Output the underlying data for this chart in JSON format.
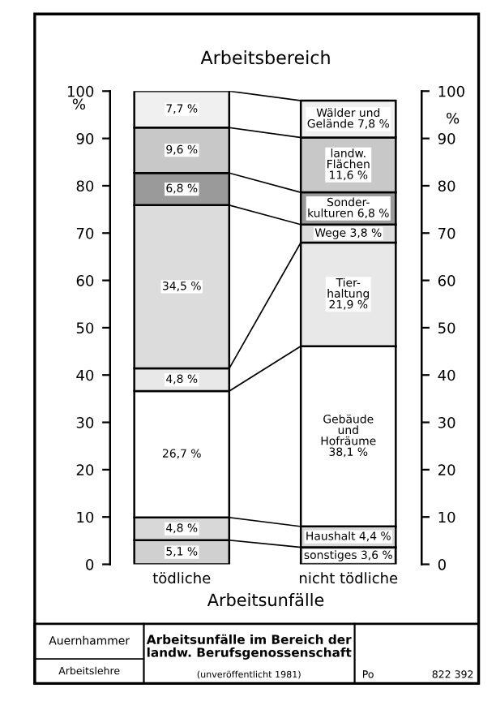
{
  "chart_data": {
    "type": "bar",
    "stacked": true,
    "title": "Arbeitsbereich",
    "xlabel": "Arbeitsunfälle",
    "ylabel": "%",
    "y2label": "%",
    "categories": [
      "tödliche",
      "nicht tödliche"
    ],
    "series": [
      {
        "color": "#d0d0d0",
        "values": [
          5.1,
          3.6
        ],
        "value_labels": [
          "5,1 %",
          "sonstiges 3,6 %"
        ]
      },
      {
        "color": "#d8d8d8",
        "values": [
          4.8,
          4.4
        ],
        "value_labels": [
          "4,8 %",
          "Haushalt 4,4 %"
        ]
      },
      {
        "color": "#ffffff",
        "values": [
          26.7,
          38.1
        ],
        "value_labels": [
          "26,7 %",
          "Gebäude\nund\nHofräume\n38,1 %"
        ]
      },
      {
        "color": "#e8e8e8",
        "values": [
          4.8,
          21.9
        ],
        "value_labels": [
          "4,8 %",
          "Tier-\nhaltung\n21,9 %"
        ]
      },
      {
        "color": "#dcdcdc",
        "values": [
          34.5,
          3.8
        ],
        "value_labels": [
          "34,5 %",
          "Wege 3,8 %"
        ]
      },
      {
        "color": "#9a9a9a",
        "values": [
          6.8,
          6.8
        ],
        "value_labels": [
          "6,8 %",
          "Sonder-\nkulturen 6,8 %"
        ]
      },
      {
        "color": "#c8c8c8",
        "values": [
          9.6,
          11.6
        ],
        "value_labels": [
          "9,6 %",
          "landw.\nFlächen\n11,6 %"
        ]
      },
      {
        "color": "#f0f0f0",
        "values": [
          7.7,
          7.8
        ],
        "value_labels": [
          "7,7 %",
          "Wälder und\nGelände 7,8 %"
        ]
      }
    ],
    "ylim": [
      0,
      100
    ],
    "yticks": [
      0,
      10,
      20,
      30,
      40,
      50,
      60,
      70,
      80,
      90,
      100
    ],
    "y2lim": [
      0,
      100
    ],
    "y2ticks": [
      0,
      10,
      20,
      30,
      40,
      50,
      60,
      70,
      80,
      90,
      100
    ],
    "annotations": [
      "Auernhammer",
      "Arbeitslehre",
      "Arbeitsunfälle im Bereich der\nlandw. Berufsgenossenschaft",
      "(unveröffentlicht 1981)",
      "Po",
      "822 392"
    ]
  }
}
